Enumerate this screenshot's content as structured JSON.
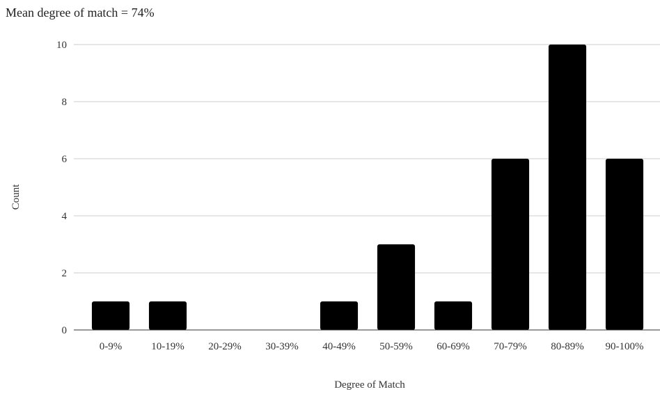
{
  "chart_data": {
    "type": "bar",
    "title": "Mean degree of match = 74%",
    "xlabel": "Degree of Match",
    "ylabel": "Count",
    "categories": [
      "0-9%",
      "10-19%",
      "20-29%",
      "30-39%",
      "40-49%",
      "50-59%",
      "60-69%",
      "70-79%",
      "80-89%",
      "90-100%"
    ],
    "values": [
      1,
      1,
      0,
      0,
      1,
      3,
      1,
      6,
      10,
      6
    ],
    "ylim": [
      0,
      10
    ],
    "yticks": [
      0,
      2,
      4,
      6,
      8,
      10
    ],
    "grid": true,
    "bar_color": "#000000",
    "grid_color": "#cccccc"
  }
}
